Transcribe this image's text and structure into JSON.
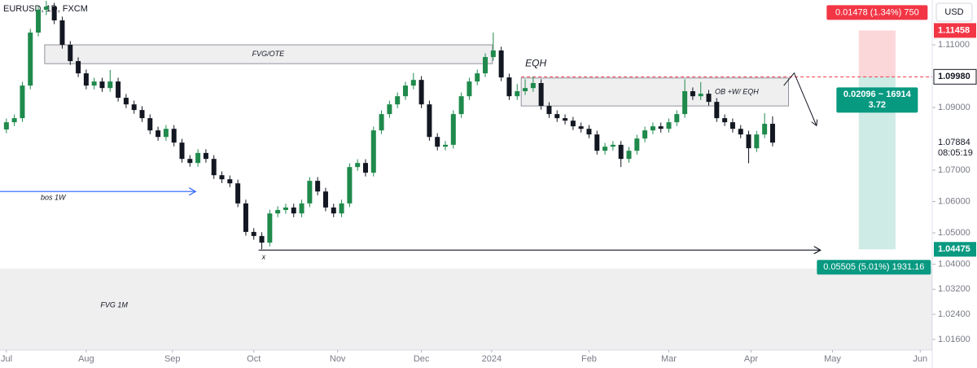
{
  "chart_data": {
    "type": "candlestick",
    "title": "EURUSD, 1D, FXCM",
    "currency": "USD",
    "up_color": "#1f8a4c",
    "down_color": "#131722",
    "grid": false,
    "xlim": [
      -0.8,
      116
    ],
    "ylim": [
      1.0126,
      1.1243
    ],
    "xticks": [
      {
        "value": 0,
        "label": "Jul"
      },
      {
        "value": 10,
        "label": "Aug"
      },
      {
        "value": 20.8,
        "label": "Sep"
      },
      {
        "value": 31,
        "label": "Oct"
      },
      {
        "value": 41.5,
        "label": "Nov"
      },
      {
        "value": 52,
        "label": "Dec"
      },
      {
        "value": 60.8,
        "label": "2024"
      },
      {
        "value": 73,
        "label": "Feb"
      },
      {
        "value": 83,
        "label": "Mar"
      },
      {
        "value": 93.3,
        "label": "Apr"
      },
      {
        "value": 103.5,
        "label": "May"
      },
      {
        "value": 114.5,
        "label": "Jun"
      }
    ],
    "yticks": [
      {
        "value": 1.11,
        "label": "1.11000"
      },
      {
        "value": 1.09,
        "label": "1.09000"
      },
      {
        "value": 1.07,
        "label": "1.07000"
      },
      {
        "value": 1.06,
        "label": "1.06000"
      },
      {
        "value": 1.05,
        "label": "1.05000"
      },
      {
        "value": 1.04,
        "label": "1.04000"
      },
      {
        "value": 1.032,
        "label": "1.03200"
      },
      {
        "value": 1.024,
        "label": "1.02400"
      },
      {
        "value": 1.016,
        "label": "1.01600"
      }
    ],
    "candles": [
      [
        1.083,
        1.0865,
        1.0818,
        1.0853
      ],
      [
        1.0853,
        1.0878,
        1.0841,
        1.0866
      ],
      [
        1.0866,
        1.0982,
        1.0854,
        1.097
      ],
      [
        1.097,
        1.1151,
        1.0958,
        1.1139
      ],
      [
        1.1139,
        1.1224,
        1.1127,
        1.1212
      ],
      [
        1.1212,
        1.124,
        1.1195,
        1.1222
      ],
      [
        1.1222,
        1.1234,
        1.1166,
        1.1178
      ],
      [
        1.1178,
        1.119,
        1.1088,
        1.11
      ],
      [
        1.11,
        1.1112,
        1.1036,
        1.1048
      ],
      [
        1.1048,
        1.106,
        1.0997,
        1.1009
      ],
      [
        1.1009,
        1.1021,
        1.0958,
        1.097
      ],
      [
        1.097,
        1.0995,
        1.0958,
        1.0983
      ],
      [
        1.0983,
        1.0995,
        1.095,
        1.0962
      ],
      [
        1.0962,
        1.102,
        1.095,
        1.0983
      ],
      [
        1.0983,
        1.0995,
        1.0919,
        1.0931
      ],
      [
        1.0931,
        1.0943,
        1.0898,
        1.091
      ],
      [
        1.091,
        1.0922,
        1.088,
        1.0892
      ],
      [
        1.0892,
        1.0904,
        1.0854,
        1.0866
      ],
      [
        1.0866,
        1.0878,
        1.0815,
        1.0827
      ],
      [
        1.0827,
        1.0839,
        1.0794,
        1.0806
      ],
      [
        1.0806,
        1.0844,
        1.0794,
        1.0832
      ],
      [
        1.0832,
        1.0844,
        1.0776,
        1.0788
      ],
      [
        1.0788,
        1.08,
        1.0724,
        1.0736
      ],
      [
        1.0736,
        1.0748,
        1.0711,
        1.0723
      ],
      [
        1.0723,
        1.0767,
        1.0711,
        1.0755
      ],
      [
        1.0755,
        1.0767,
        1.0724,
        1.0736
      ],
      [
        1.0736,
        1.0748,
        1.0672,
        1.0684
      ],
      [
        1.0684,
        1.0696,
        1.0659,
        1.0671
      ],
      [
        1.0671,
        1.0683,
        1.0646,
        1.0658
      ],
      [
        1.0658,
        1.067,
        1.0582,
        1.0594
      ],
      [
        1.0594,
        1.0606,
        1.0491,
        1.0503
      ],
      [
        1.0503,
        1.0515,
        1.0478,
        1.049
      ],
      [
        1.049,
        1.0502,
        1.0448,
        1.0469
      ],
      [
        1.0469,
        1.0574,
        1.0457,
        1.0562
      ],
      [
        1.0562,
        1.0585,
        1.055,
        1.0573
      ],
      [
        1.0573,
        1.0593,
        1.0561,
        1.0581
      ],
      [
        1.0581,
        1.0593,
        1.055,
        1.0562
      ],
      [
        1.0562,
        1.0606,
        1.055,
        1.0594
      ],
      [
        1.0594,
        1.0678,
        1.0582,
        1.0666
      ],
      [
        1.0666,
        1.0678,
        1.062,
        1.0632
      ],
      [
        1.0632,
        1.0644,
        1.0569,
        1.0581
      ],
      [
        1.0581,
        1.0593,
        1.055,
        1.0562
      ],
      [
        1.0562,
        1.0606,
        1.055,
        1.0594
      ],
      [
        1.0594,
        1.0722,
        1.0582,
        1.071
      ],
      [
        1.071,
        1.0735,
        1.0698,
        1.0723
      ],
      [
        1.0723,
        1.0735,
        1.068,
        1.0692
      ],
      [
        1.0692,
        1.0839,
        1.068,
        1.0827
      ],
      [
        1.0827,
        1.0891,
        1.0815,
        1.0879
      ],
      [
        1.0879,
        1.0922,
        1.0867,
        1.091
      ],
      [
        1.091,
        1.0948,
        1.0898,
        1.0936
      ],
      [
        1.0936,
        1.0982,
        1.0924,
        1.097
      ],
      [
        1.097,
        1.101,
        1.0958,
        1.0988
      ],
      [
        1.0988,
        1.1,
        1.0898,
        1.091
      ],
      [
        1.091,
        1.0922,
        1.0794,
        1.0806
      ],
      [
        1.0806,
        1.0818,
        1.0763,
        1.0775
      ],
      [
        1.0775,
        1.0793,
        1.0763,
        1.0781
      ],
      [
        1.0781,
        1.0891,
        1.0769,
        1.0879
      ],
      [
        1.0879,
        1.0948,
        1.0867,
        1.0936
      ],
      [
        1.0936,
        1.0995,
        1.0924,
        1.0983
      ],
      [
        1.0983,
        1.1021,
        1.0971,
        1.1009
      ],
      [
        1.1009,
        1.1073,
        1.0997,
        1.1061
      ],
      [
        1.1061,
        1.1139,
        1.1049,
        1.1082
      ],
      [
        1.1082,
        1.1094,
        1.0984,
        1.0996
      ],
      [
        1.0996,
        1.1008,
        1.0924,
        1.0936
      ],
      [
        1.0936,
        1.0975,
        1.0924,
        1.0952
      ],
      [
        1.0952,
        1.099,
        1.094,
        1.0962
      ],
      [
        1.0962,
        1.0998,
        1.095,
        1.0978
      ],
      [
        1.0978,
        1.099,
        1.0893,
        1.0905
      ],
      [
        1.0905,
        1.0917,
        1.0867,
        1.0879
      ],
      [
        1.0879,
        1.0891,
        1.0854,
        1.0866
      ],
      [
        1.0866,
        1.0878,
        1.0846,
        1.0858
      ],
      [
        1.0858,
        1.087,
        1.0828,
        1.084
      ],
      [
        1.084,
        1.0852,
        1.082,
        1.0832
      ],
      [
        1.0832,
        1.0844,
        1.0802,
        1.0814
      ],
      [
        1.0814,
        1.0826,
        1.075,
        1.0762
      ],
      [
        1.0762,
        1.0787,
        1.075,
        1.0775
      ],
      [
        1.0775,
        1.0793,
        1.0763,
        1.0781
      ],
      [
        1.0781,
        1.0793,
        1.071,
        1.0736
      ],
      [
        1.0736,
        1.0774,
        1.0724,
        1.0762
      ],
      [
        1.0762,
        1.0813,
        1.075,
        1.0801
      ],
      [
        1.0801,
        1.0839,
        1.0789,
        1.0827
      ],
      [
        1.0827,
        1.0852,
        1.0815,
        1.084
      ],
      [
        1.084,
        1.0852,
        1.082,
        1.0832
      ],
      [
        1.0832,
        1.0865,
        1.082,
        1.0853
      ],
      [
        1.0853,
        1.0891,
        1.0841,
        1.0879
      ],
      [
        1.0879,
        1.099,
        1.0867,
        1.0952
      ],
      [
        1.0952,
        1.0964,
        1.0924,
        1.0936
      ],
      [
        1.0936,
        1.0981,
        1.0924,
        1.0944
      ],
      [
        1.0944,
        1.0956,
        1.0906,
        1.0918
      ],
      [
        1.0918,
        1.093,
        1.0854,
        1.0866
      ],
      [
        1.0866,
        1.0878,
        1.0841,
        1.0853
      ],
      [
        1.0853,
        1.0865,
        1.082,
        1.0832
      ],
      [
        1.0832,
        1.0844,
        1.0802,
        1.0814
      ],
      [
        1.0814,
        1.0826,
        1.0722,
        1.077
      ],
      [
        1.077,
        1.0826,
        1.0758,
        1.0814
      ],
      [
        1.0814,
        1.0882,
        1.0802,
        1.0848
      ],
      [
        1.0848,
        1.0872,
        1.0776,
        1.0788
      ]
    ],
    "zones": [
      {
        "label": "FVG/OTE",
        "x": [
          4.8,
          60.9
        ],
        "y": [
          1.104,
          1.11
        ],
        "label_x": 32.8
      },
      {
        "label": "OB +W/ EQH",
        "x": [
          64.5,
          98
        ],
        "y": [
          1.0905,
          1.0994
        ],
        "label_x": 91.5
      },
      {
        "label": "FVG 1M",
        "x": [
          -0.8,
          116
        ],
        "y": [
          1.0126,
          1.0386
        ],
        "label_x": 13.5
      }
    ],
    "lines": [
      {
        "label": "bos 1W",
        "color": "#2962ff",
        "x": [
          -0.8,
          23.7
        ],
        "y": 1.0632,
        "arrow": true,
        "dashed": false
      },
      {
        "label": "x",
        "color": "#131722",
        "x": [
          31.6,
          102
        ],
        "y": 1.0445,
        "arrow": true,
        "dashed": false
      },
      {
        "label": "EQH",
        "color": "#f23645",
        "x": [
          64.5,
          116
        ],
        "y": 1.0998,
        "arrow": false,
        "dashed": true
      }
    ],
    "path": {
      "x": [
        97.4,
        98.7,
        101.5
      ],
      "y": [
        1.097,
        1.101,
        1.0842
      ]
    },
    "position": {
      "x": [
        106.8,
        111.4
      ],
      "entry": {
        "value": 1.0998,
        "label": "1.09980"
      },
      "stop": 1.11458,
      "target": 1.04475,
      "stop_text": "0.01478 (1.34%) 750",
      "ratio_text": [
        "0.02096 ~ 16914",
        "3.72"
      ],
      "target_text": "0.05505 (5.01%) 1931.16"
    },
    "last": {
      "value": 1.07884,
      "countdown": "08:05:19"
    }
  }
}
